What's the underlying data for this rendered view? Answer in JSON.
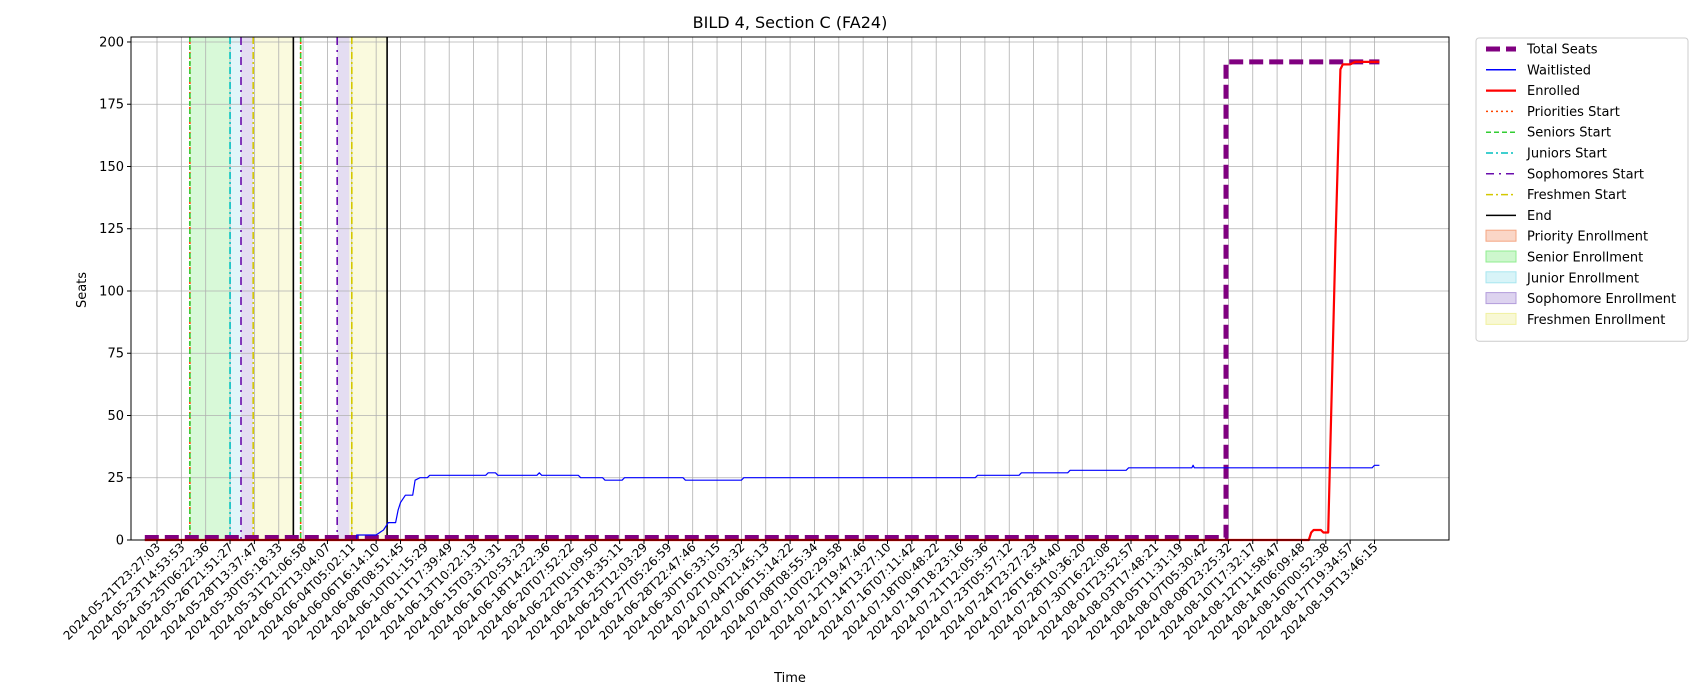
{
  "chart_data": {
    "type": "line",
    "title": "BILD 4, Section C (FA24)",
    "xlabel": "Time",
    "ylabel": "Seats",
    "ylim": [
      0,
      202
    ],
    "yticks": [
      0,
      25,
      50,
      75,
      100,
      125,
      150,
      175,
      200
    ],
    "grid": true,
    "legend_position": "outside-right",
    "x_tick_labels": [
      "2024-05-21T23:27:03",
      "2024-05-23T14:53:53",
      "2024-05-25T06:22:36",
      "2024-05-26T21:51:27",
      "2024-05-28T13:37:47",
      "2024-05-30T05:18:33",
      "2024-05-31T21:06:58",
      "2024-06-02T13:04:07",
      "2024-06-04T05:02:11",
      "2024-06-06T16:14:10",
      "2024-06-08T08:51:45",
      "2024-06-10T01:15:29",
      "2024-06-11T17:39:49",
      "2024-06-13T10:22:13",
      "2024-06-15T03:31:31",
      "2024-06-16T20:53:23",
      "2024-06-18T14:22:36",
      "2024-06-20T07:52:22",
      "2024-06-22T01:09:50",
      "2024-06-23T18:35:11",
      "2024-06-25T12:03:29",
      "2024-06-27T05:26:59",
      "2024-06-28T22:47:46",
      "2024-06-30T16:33:15",
      "2024-07-02T10:03:32",
      "2024-07-04T21:45:13",
      "2024-07-06T15:14:22",
      "2024-07-08T08:55:34",
      "2024-07-10T02:29:58",
      "2024-07-12T19:47:46",
      "2024-07-14T13:27:10",
      "2024-07-16T07:11:42",
      "2024-07-18T00:48:22",
      "2024-07-19T18:23:16",
      "2024-07-21T12:05:36",
      "2024-07-23T05:57:12",
      "2024-07-24T23:27:23",
      "2024-07-26T16:54:40",
      "2024-07-28T10:36:20",
      "2024-07-30T16:22:08",
      "2024-08-01T23:52:57",
      "2024-08-03T17:48:21",
      "2024-08-05T11:31:19",
      "2024-08-07T05:30:42",
      "2024-08-08T23:25:32",
      "2024-08-10T17:32:17",
      "2024-08-12T11:58:47",
      "2024-08-14T06:09:48",
      "2024-08-16T00:52:38",
      "2024-08-17T19:34:57",
      "2024-08-19T13:46:15"
    ],
    "series": [
      {
        "name": "Total Seats",
        "color": "#800080",
        "style": "dashed-thick",
        "points": [
          [
            -0.5,
            1
          ],
          [
            43.9,
            1
          ],
          [
            43.9,
            192
          ],
          [
            50.2,
            192
          ]
        ]
      },
      {
        "name": "Waitlisted",
        "color": "#0000ff",
        "style": "solid-thin",
        "points": [
          [
            -0.5,
            0
          ],
          [
            8.2,
            0
          ],
          [
            8.2,
            2
          ],
          [
            9.0,
            2
          ],
          [
            9.3,
            4
          ],
          [
            9.5,
            7
          ],
          [
            9.8,
            7
          ],
          [
            9.9,
            12
          ],
          [
            10.0,
            15
          ],
          [
            10.2,
            18
          ],
          [
            10.5,
            18
          ],
          [
            10.6,
            24
          ],
          [
            10.8,
            25
          ],
          [
            11.1,
            25
          ],
          [
            11.2,
            26
          ],
          [
            13.5,
            26
          ],
          [
            13.6,
            27
          ],
          [
            13.9,
            27
          ],
          [
            14.0,
            26
          ],
          [
            15.6,
            26
          ],
          [
            15.7,
            27
          ],
          [
            15.8,
            26
          ],
          [
            17.3,
            26
          ],
          [
            17.4,
            25
          ],
          [
            18.3,
            25
          ],
          [
            18.4,
            24
          ],
          [
            19.1,
            24
          ],
          [
            19.2,
            25
          ],
          [
            21.6,
            25
          ],
          [
            21.7,
            24
          ],
          [
            24.0,
            24
          ],
          [
            24.1,
            25
          ],
          [
            33.6,
            25
          ],
          [
            33.7,
            26
          ],
          [
            35.4,
            26
          ],
          [
            35.5,
            27
          ],
          [
            37.4,
            27
          ],
          [
            37.5,
            28
          ],
          [
            39.8,
            28
          ],
          [
            39.9,
            29
          ],
          [
            42.5,
            29
          ],
          [
            42.55,
            30
          ],
          [
            42.6,
            29
          ],
          [
            49.9,
            29
          ],
          [
            50.0,
            30
          ],
          [
            50.2,
            30
          ]
        ]
      },
      {
        "name": "Enrolled",
        "color": "#ff0000",
        "style": "solid-thick",
        "points": [
          [
            -0.5,
            0
          ],
          [
            47.3,
            0
          ],
          [
            47.4,
            3
          ],
          [
            47.5,
            4
          ],
          [
            47.8,
            4
          ],
          [
            47.9,
            3
          ],
          [
            48.1,
            3
          ],
          [
            48.4,
            120
          ],
          [
            48.6,
            189
          ],
          [
            48.7,
            191
          ],
          [
            49.0,
            191
          ],
          [
            49.2,
            192
          ],
          [
            50.2,
            192
          ]
        ]
      }
    ],
    "markers": [
      {
        "name": "Priorities Start",
        "color": "#ff4500",
        "style": "dotted",
        "x": [
          1.35,
          5.9
        ]
      },
      {
        "name": "Seniors Start",
        "color": "#32cd32",
        "style": "dashed",
        "x": [
          1.35,
          5.9
        ]
      },
      {
        "name": "Juniors Start",
        "color": "#00bfbf",
        "style": "dashdot",
        "x": [
          3.0
        ]
      },
      {
        "name": "Sophomores Start",
        "color": "#6a0dad",
        "style": "loose-dashdot",
        "x": [
          3.45,
          7.4
        ]
      },
      {
        "name": "Freshmen Start",
        "color": "#d4c800",
        "style": "dashdot",
        "x": [
          3.95,
          8.0
        ]
      },
      {
        "name": "End",
        "color": "#000000",
        "style": "solid",
        "x": [
          5.6,
          9.45
        ]
      }
    ],
    "regions": [
      {
        "name": "Priority Enrollment",
        "color": "#f4a582",
        "spans": []
      },
      {
        "name": "Senior Enrollment",
        "color": "#90ee90",
        "spans": [
          [
            1.35,
            3.0
          ]
        ]
      },
      {
        "name": "Junior Enrollment",
        "color": "#a8e6ef",
        "spans": [
          [
            3.0,
            3.45
          ]
        ]
      },
      {
        "name": "Sophomore Enrollment",
        "color": "#b39ddb",
        "spans": [
          [
            3.45,
            3.95
          ],
          [
            7.4,
            7.9
          ]
        ]
      },
      {
        "name": "Freshmen Enrollment",
        "color": "#f0f0a0",
        "spans": [
          [
            3.95,
            5.6
          ],
          [
            7.9,
            9.45
          ]
        ]
      }
    ],
    "legend": [
      {
        "label": "Total Seats",
        "kind": "line",
        "color": "#800080",
        "style": "dashed-thick"
      },
      {
        "label": "Waitlisted",
        "kind": "line",
        "color": "#0000ff",
        "style": "solid-thin"
      },
      {
        "label": "Enrolled",
        "kind": "line",
        "color": "#ff0000",
        "style": "solid-thick"
      },
      {
        "label": "Priorities Start",
        "kind": "line",
        "color": "#ff4500",
        "style": "dotted"
      },
      {
        "label": "Seniors Start",
        "kind": "line",
        "color": "#32cd32",
        "style": "dashed"
      },
      {
        "label": "Juniors Start",
        "kind": "line",
        "color": "#00bfbf",
        "style": "dashdot"
      },
      {
        "label": "Sophomores Start",
        "kind": "line",
        "color": "#6a0dad",
        "style": "loose-dashdot"
      },
      {
        "label": "Freshmen Start",
        "kind": "line",
        "color": "#d4c800",
        "style": "dashdot"
      },
      {
        "label": "End",
        "kind": "line",
        "color": "#000000",
        "style": "solid"
      },
      {
        "label": "Priority Enrollment",
        "kind": "patch",
        "color": "#f4a582"
      },
      {
        "label": "Senior Enrollment",
        "kind": "patch",
        "color": "#90ee90"
      },
      {
        "label": "Junior Enrollment",
        "kind": "patch",
        "color": "#a8e6ef"
      },
      {
        "label": "Sophomore Enrollment",
        "kind": "patch",
        "color": "#b39ddb"
      },
      {
        "label": "Freshmen Enrollment",
        "kind": "patch",
        "color": "#f0f0a0"
      }
    ]
  }
}
